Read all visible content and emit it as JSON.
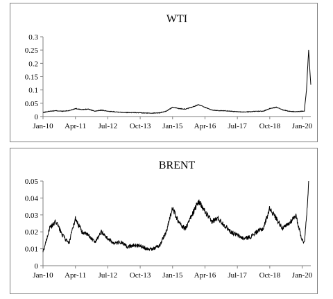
{
  "chart_data": [
    {
      "type": "line",
      "title": "WTI",
      "xlabel": "",
      "ylabel": "",
      "ylim": [
        0,
        0.3
      ],
      "yticks": [
        "0",
        "0.05",
        "0.1",
        "0.15",
        "0.2",
        "0.25",
        "0.3"
      ],
      "xticks": [
        "Jan-10",
        "Apr-11",
        "Jul-12",
        "Oct-13",
        "Jan-15",
        "Apr-16",
        "Jul-17",
        "Oct-18",
        "Jan-20"
      ],
      "grid": false,
      "series": [
        {
          "x": [
            "2010-01",
            "2010-04",
            "2010-07",
            "2010-10",
            "2011-01",
            "2011-04",
            "2011-07",
            "2011-10",
            "2012-01",
            "2012-04",
            "2012-07",
            "2012-10",
            "2013-01",
            "2013-04",
            "2013-07",
            "2013-10",
            "2014-01",
            "2014-04",
            "2014-07",
            "2014-10",
            "2015-01",
            "2015-04",
            "2015-07",
            "2015-10",
            "2016-01",
            "2016-04",
            "2016-07",
            "2016-10",
            "2017-01",
            "2017-04",
            "2017-07",
            "2017-10",
            "2018-01",
            "2018-04",
            "2018-07",
            "2018-10",
            "2019-01",
            "2019-04",
            "2019-07",
            "2019-10",
            "2020-01",
            "2020-02",
            "2020-03",
            "2020-04",
            "2020-05"
          ],
          "values": [
            0.015,
            0.02,
            0.022,
            0.02,
            0.022,
            0.03,
            0.026,
            0.028,
            0.02,
            0.024,
            0.02,
            0.018,
            0.016,
            0.015,
            0.015,
            0.014,
            0.013,
            0.013,
            0.014,
            0.02,
            0.035,
            0.03,
            0.028,
            0.035,
            0.045,
            0.035,
            0.025,
            0.022,
            0.022,
            0.02,
            0.018,
            0.017,
            0.018,
            0.02,
            0.02,
            0.03,
            0.035,
            0.025,
            0.02,
            0.018,
            0.02,
            0.02,
            0.1,
            0.25,
            0.12
          ]
        }
      ]
    },
    {
      "type": "line",
      "title": "BRENT",
      "xlabel": "",
      "ylabel": "",
      "ylim": [
        0,
        0.05
      ],
      "yticks": [
        "0",
        "0.01",
        "0.02",
        "0.03",
        "0.04",
        "0.05"
      ],
      "xticks": [
        "Jan-10",
        "Apr-11",
        "Jul-12",
        "Oct-13",
        "Jan-15",
        "Apr-16",
        "Jul-17",
        "Oct-18",
        "Jan-20"
      ],
      "grid": false,
      "series": [
        {
          "x": [
            "2010-01",
            "2010-04",
            "2010-07",
            "2010-10",
            "2011-01",
            "2011-04",
            "2011-07",
            "2011-10",
            "2012-01",
            "2012-04",
            "2012-07",
            "2012-10",
            "2013-01",
            "2013-04",
            "2013-07",
            "2013-10",
            "2014-01",
            "2014-04",
            "2014-07",
            "2014-10",
            "2015-01",
            "2015-04",
            "2015-07",
            "2015-10",
            "2016-01",
            "2016-04",
            "2016-07",
            "2016-10",
            "2017-01",
            "2017-04",
            "2017-07",
            "2017-10",
            "2018-01",
            "2018-04",
            "2018-07",
            "2018-10",
            "2019-01",
            "2019-04",
            "2019-07",
            "2019-10",
            "2020-01",
            "2020-02",
            "2020-03",
            "2020-04"
          ],
          "values": [
            0.008,
            0.022,
            0.026,
            0.018,
            0.013,
            0.028,
            0.02,
            0.018,
            0.014,
            0.02,
            0.016,
            0.013,
            0.014,
            0.011,
            0.012,
            0.012,
            0.01,
            0.01,
            0.012,
            0.02,
            0.034,
            0.025,
            0.022,
            0.03,
            0.038,
            0.032,
            0.026,
            0.028,
            0.024,
            0.02,
            0.018,
            0.016,
            0.017,
            0.02,
            0.022,
            0.034,
            0.028,
            0.022,
            0.025,
            0.03,
            0.015,
            0.014,
            0.028,
            0.05
          ]
        }
      ]
    }
  ]
}
